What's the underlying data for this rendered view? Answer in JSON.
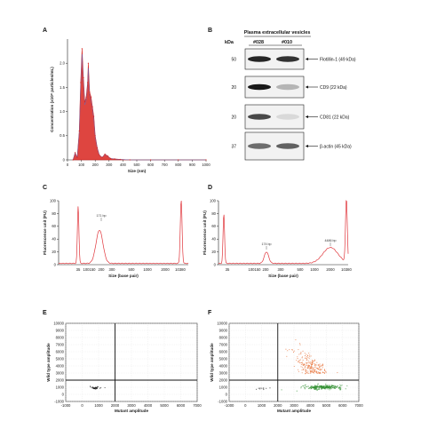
{
  "panels": {
    "A": "A",
    "B": "B",
    "C": "C",
    "D": "D",
    "E": "E",
    "F": "F"
  },
  "colors": {
    "nta_fill": "#d8241e",
    "nta_blue": "#4a6fd0",
    "trace": "#e0353b",
    "droplet_negative": "#1a1a1a",
    "droplet_wt": "#2f8f2f",
    "droplet_mut": "#e8733a",
    "threshold": "#111111"
  },
  "chart_data": [
    {
      "panel": "A",
      "type": "area",
      "xlabel": "Size (nm)",
      "ylabel": "Concentration (x10⁸ particles/mL)",
      "xlim": [
        0,
        1000
      ],
      "ylim": [
        0,
        2.5
      ],
      "xticks": [
        "0",
        "100",
        "200",
        "300",
        "400",
        "500",
        "600",
        "700",
        "800",
        "900",
        "1000"
      ],
      "yticks": [
        "0",
        "0.5",
        "1.0",
        "1.5",
        "2.0"
      ],
      "x": [
        40,
        55,
        70,
        85,
        95,
        105,
        115,
        125,
        135,
        145,
        150,
        160,
        170,
        180,
        190,
        200,
        215,
        230,
        250,
        270,
        290,
        310,
        340,
        380,
        450,
        600,
        800,
        1000
      ],
      "y": [
        0,
        0.15,
        0.05,
        0.6,
        1.6,
        2.3,
        1.7,
        1.2,
        1.3,
        1.6,
        2.0,
        1.4,
        1.3,
        1.1,
        0.9,
        0.5,
        0.25,
        0.1,
        0.05,
        0.12,
        0.08,
        0.03,
        0.02,
        0.01,
        0,
        0,
        0,
        0
      ]
    },
    {
      "panel": "B",
      "type": "table",
      "title": "Plasma extracellular vesicles",
      "column_header": "kDa",
      "lanes": [
        "#028",
        "#010"
      ],
      "markers": [
        "50",
        "20",
        "20",
        "37"
      ],
      "bands": [
        {
          "label": "Flotillin-1 (49 kDa)",
          "intensity": [
            0.85,
            0.8
          ]
        },
        {
          "label": "CD9 (22 kDa)",
          "intensity": [
            0.9,
            0.25
          ]
        },
        {
          "label": "CD81 (22 kDa)",
          "intensity": [
            0.7,
            0.1
          ]
        },
        {
          "label": "β-actin (45 kDa)",
          "intensity": [
            0.55,
            0.6
          ]
        }
      ]
    },
    {
      "panel": "C",
      "type": "line",
      "xlabel": "Size (base pair)",
      "ylabel": "Fluorescence unit (FU)",
      "ylim": [
        0,
        100
      ],
      "yticks": [
        "0",
        "20",
        "40",
        "60",
        "80",
        "100"
      ],
      "xticks": [
        "35",
        "100",
        "150",
        "200",
        "300",
        "500",
        "1000",
        "2000",
        "10380"
      ],
      "annotation": "171 bp",
      "peaks": [
        {
          "x": "35",
          "y": 90
        },
        {
          "x": "171",
          "y": 52
        },
        {
          "x": "10380",
          "y": 100
        }
      ]
    },
    {
      "panel": "D",
      "type": "line",
      "xlabel": "Size (base pair)",
      "ylabel": "Fluorescence unit (FU)",
      "ylim": [
        0,
        100
      ],
      "yticks": [
        "0",
        "20",
        "40",
        "60",
        "80",
        "100"
      ],
      "xticks": [
        "35",
        "100",
        "150",
        "200",
        "300",
        "500",
        "1000",
        "2000",
        "10380"
      ],
      "annotations": [
        "174 bp",
        "4486 bp"
      ],
      "peaks": [
        {
          "x": "35",
          "y": 78
        },
        {
          "x": "174",
          "y": 18
        },
        {
          "x": "4486",
          "y": 25
        },
        {
          "x": "10380",
          "y": 100
        }
      ]
    },
    {
      "panel": "E",
      "type": "scatter",
      "xlabel": "Mutant amplitude",
      "ylabel": "Wild type amplitude",
      "xlim": [
        -1000,
        7000
      ],
      "ylim": [
        -1000,
        10000
      ],
      "xticks": [
        "-1000",
        "0",
        "1000",
        "2000",
        "3000",
        "4000",
        "5000",
        "6000",
        "7000"
      ],
      "yticks": [
        "-1000",
        "0",
        "1000",
        "2000",
        "3000",
        "4000",
        "5000",
        "6000",
        "7000",
        "8000",
        "9000",
        "10000"
      ],
      "threshold_x": 2000,
      "threshold_y": 2000,
      "clusters": [
        {
          "name": "negative",
          "x": 800,
          "y": 900,
          "spread_x": 150,
          "spread_y": 80,
          "n": 40
        }
      ]
    },
    {
      "panel": "F",
      "type": "scatter",
      "xlabel": "Mutant amplitude",
      "ylabel": "Wild type amplitude",
      "xlim": [
        -1000,
        7000
      ],
      "ylim": [
        -1000,
        10000
      ],
      "xticks": [
        "-1000",
        "0",
        "1000",
        "2000",
        "3000",
        "4000",
        "5000",
        "6000",
        "7000"
      ],
      "yticks": [
        "-1000",
        "0",
        "1000",
        "2000",
        "3000",
        "4000",
        "5000",
        "6000",
        "7000",
        "8000",
        "9000",
        "10000"
      ],
      "threshold_x": 2000,
      "threshold_y": 2000,
      "clusters": [
        {
          "name": "wild-type",
          "x": 4800,
          "y": 1000,
          "spread_x": 600,
          "spread_y": 150,
          "n": 260
        },
        {
          "name": "mutant",
          "x": 4200,
          "y": 3500,
          "spread_x": 700,
          "spread_y": 1500,
          "n": 220
        },
        {
          "name": "negative",
          "x": 1000,
          "y": 900,
          "spread_x": 200,
          "spread_y": 100,
          "n": 10
        }
      ]
    }
  ]
}
